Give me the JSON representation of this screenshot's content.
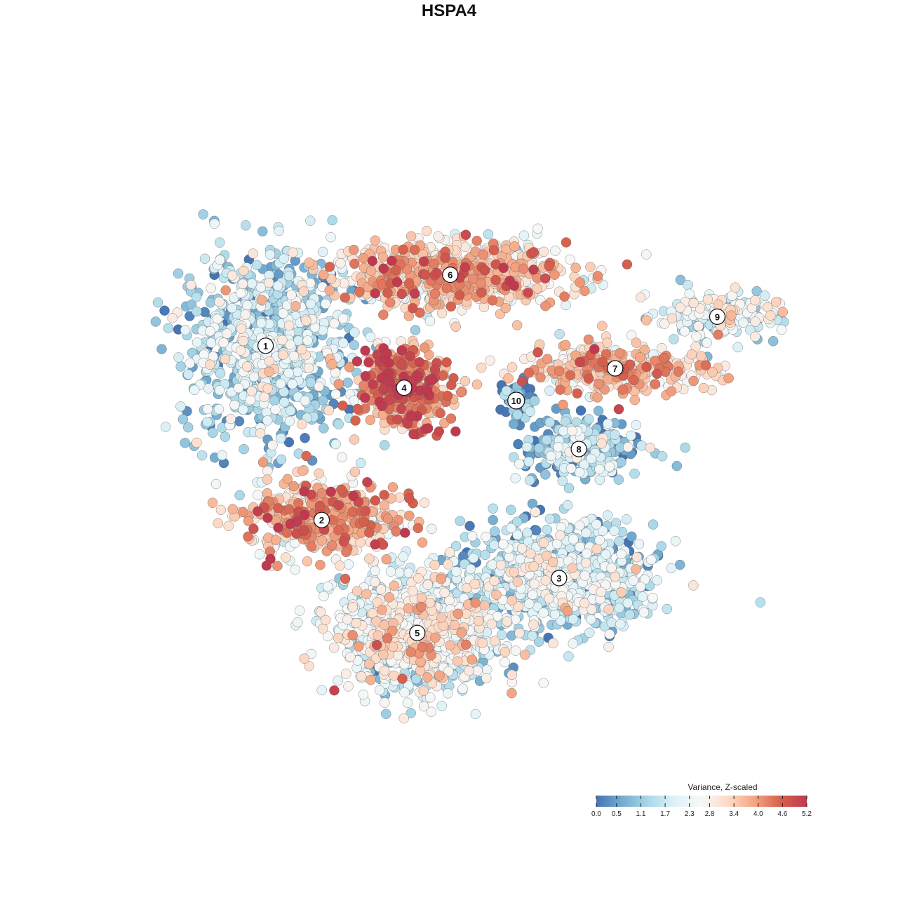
{
  "title": "HSPA4",
  "legend": {
    "title": "Variance, Z-scaled",
    "ticks": [
      "0.0",
      "0.5",
      "1.1",
      "1.7",
      "2.3",
      "2.8",
      "3.4",
      "4.0",
      "4.6",
      "5.2"
    ],
    "colors": [
      "#4575b4",
      "#74add1",
      "#abd9e9",
      "#e0f3f8",
      "#f7f7f7",
      "#fddbc7",
      "#f4a582",
      "#d6604d",
      "#c0394f"
    ]
  },
  "chart_data": {
    "type": "scatter",
    "title": "HSPA4",
    "xlabel": "",
    "ylabel": "",
    "xlim": [
      0,
      1
    ],
    "ylim": [
      0,
      1
    ],
    "color_range": [
      0.0,
      5.2
    ],
    "clusters": [
      {
        "label": "1",
        "x": 0.19,
        "y": 0.66,
        "sx": 0.085,
        "sy": 0.095,
        "mean": 1.4,
        "n": 900
      },
      {
        "label": "6",
        "x": 0.47,
        "y": 0.77,
        "sx": 0.12,
        "sy": 0.035,
        "mean": 3.2,
        "n": 700
      },
      {
        "label": "4",
        "x": 0.4,
        "y": 0.595,
        "sx": 0.045,
        "sy": 0.04,
        "mean": 4.0,
        "n": 420
      },
      {
        "label": "10",
        "x": 0.57,
        "y": 0.575,
        "sx": 0.018,
        "sy": 0.02,
        "mean": 0.4,
        "n": 60
      },
      {
        "label": "9",
        "x": 0.875,
        "y": 0.705,
        "sx": 0.06,
        "sy": 0.025,
        "mean": 2.0,
        "n": 180
      },
      {
        "label": "7",
        "x": 0.72,
        "y": 0.625,
        "sx": 0.1,
        "sy": 0.025,
        "mean": 3.3,
        "n": 320
      },
      {
        "label": "8",
        "x": 0.665,
        "y": 0.5,
        "sx": 0.06,
        "sy": 0.035,
        "mean": 1.1,
        "n": 260
      },
      {
        "label": "2",
        "x": 0.275,
        "y": 0.39,
        "sx": 0.075,
        "sy": 0.04,
        "mean": 3.5,
        "n": 450
      },
      {
        "label": "3",
        "x": 0.635,
        "y": 0.3,
        "sx": 0.095,
        "sy": 0.055,
        "mean": 1.5,
        "n": 900
      },
      {
        "label": "5",
        "x": 0.42,
        "y": 0.215,
        "sx": 0.08,
        "sy": 0.06,
        "mean": 2.2,
        "n": 950
      }
    ],
    "legend": {
      "title": "Variance, Z-scaled",
      "position": "bottom-right"
    }
  }
}
